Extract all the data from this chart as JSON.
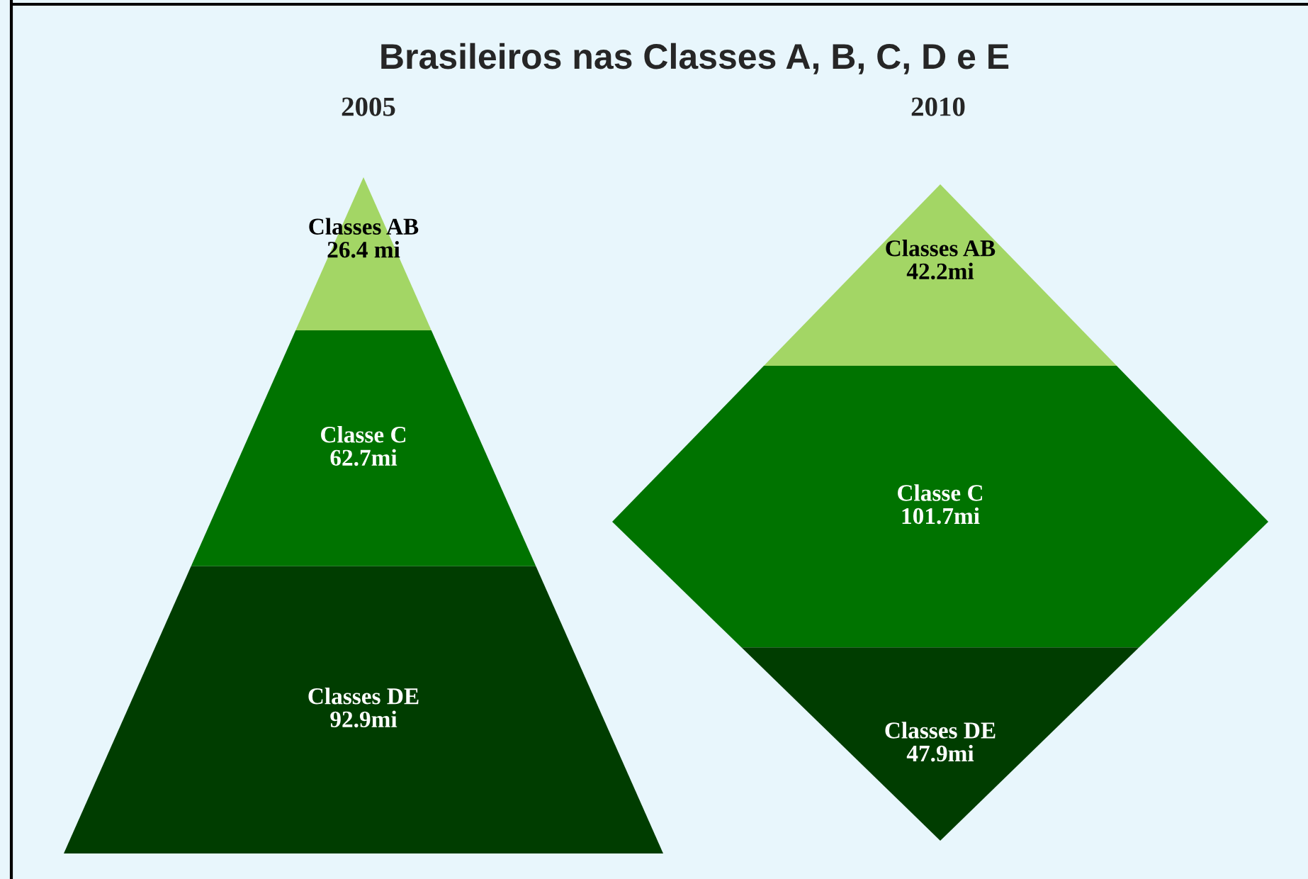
{
  "chart_data": [
    {
      "type": "other",
      "title": "Brasileiros nas Classes A, B, C, D e E",
      "subtitle": "2005",
      "categories": [
        "Classes AB",
        "Classe C",
        "Classes DE"
      ],
      "values": [
        26.4,
        62.7,
        92.9
      ],
      "value_labels": [
        "26.4 mi",
        "62.7mi",
        "92.9mi"
      ],
      "colors": [
        "#a3d665",
        "#007300",
        "#003d00"
      ],
      "data_labels": true
    },
    {
      "type": "other",
      "subtitle": "2010",
      "categories": [
        "Classes AB",
        "Classe C",
        "Classes DE"
      ],
      "values": [
        42.2,
        101.7,
        47.9
      ],
      "value_labels": [
        "42.2mi",
        "101.7mi",
        "47.9mi"
      ],
      "colors": [
        "#a3d665",
        "#007300",
        "#003d00"
      ],
      "data_labels": true
    }
  ]
}
